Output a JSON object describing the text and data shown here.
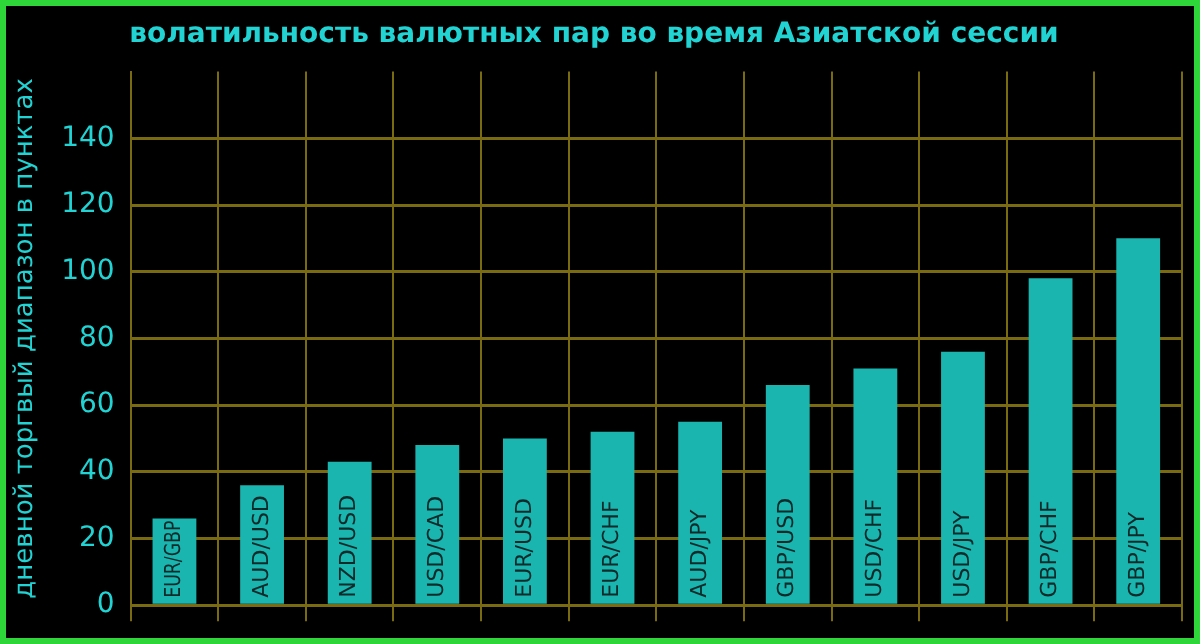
{
  "chart_data": {
    "type": "bar",
    "title": "волатильность валютных пар во время Азиатской сессии",
    "ylabel": "дневной торгвый диапазон в пунктах",
    "categories": [
      "EUR/GBP",
      "AUD/USD",
      "NZD/USD",
      "USD/CAD",
      "EUR/USD",
      "EUR/CHF",
      "AUD/JPY",
      "GBP/USD",
      "USD/CHF",
      "USD/JPY",
      "GBP/CHF",
      "GBP/JPY"
    ],
    "values": [
      26,
      36,
      43,
      48,
      50,
      52,
      55,
      66,
      71,
      76,
      98,
      110
    ],
    "color": "#1bb5b0",
    "ylim": [
      0,
      160
    ],
    "yticks": [
      0,
      20,
      40,
      60,
      80,
      100,
      120,
      140
    ],
    "grid": true,
    "legend": false
  }
}
